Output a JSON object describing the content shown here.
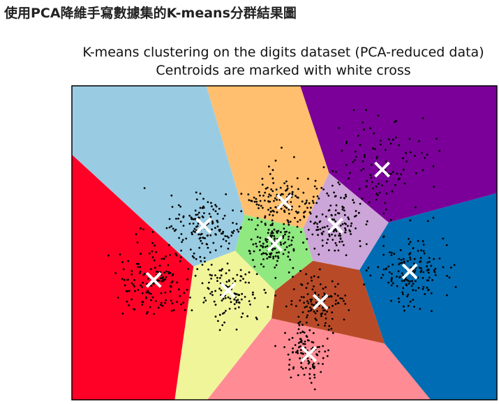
{
  "page": {
    "heading": "使用PCA降維手寫數據集的K-means分群結果圖"
  },
  "chart_data": {
    "type": "scatter",
    "title": "K-means clustering on the digits dataset (PCA-reduced data)",
    "subtitle": "Centroids are marked with white cross",
    "xlabel": "",
    "ylabel": "",
    "axes_ticks": false,
    "grid": false,
    "xlim": [
      -40,
      40
    ],
    "ylim": [
      -33,
      33
    ],
    "n_clusters": 10,
    "decision_region_colors": [
      "#ff0026",
      "#f0f59a",
      "#ff8b94",
      "#b94a28",
      "#006cb3",
      "#cca6d8",
      "#7b0099",
      "#ffbf6e",
      "#99cce3",
      "#90e880"
    ],
    "centroid_marker": {
      "shape": "x",
      "color": "#ffffff"
    },
    "point_color": "#000000",
    "centroids": [
      {
        "x": -24.6,
        "y": -7.8
      },
      {
        "x": -10.6,
        "y": -10.0
      },
      {
        "x": 4.6,
        "y": -23.4
      },
      {
        "x": 6.8,
        "y": -12.4
      },
      {
        "x": 23.6,
        "y": -6.0
      },
      {
        "x": 9.6,
        "y": 3.6
      },
      {
        "x": 18.4,
        "y": 15.4
      },
      {
        "x": 0.0,
        "y": 8.6
      },
      {
        "x": -15.2,
        "y": 3.6
      },
      {
        "x": -1.8,
        "y": -0.2
      }
    ]
  }
}
